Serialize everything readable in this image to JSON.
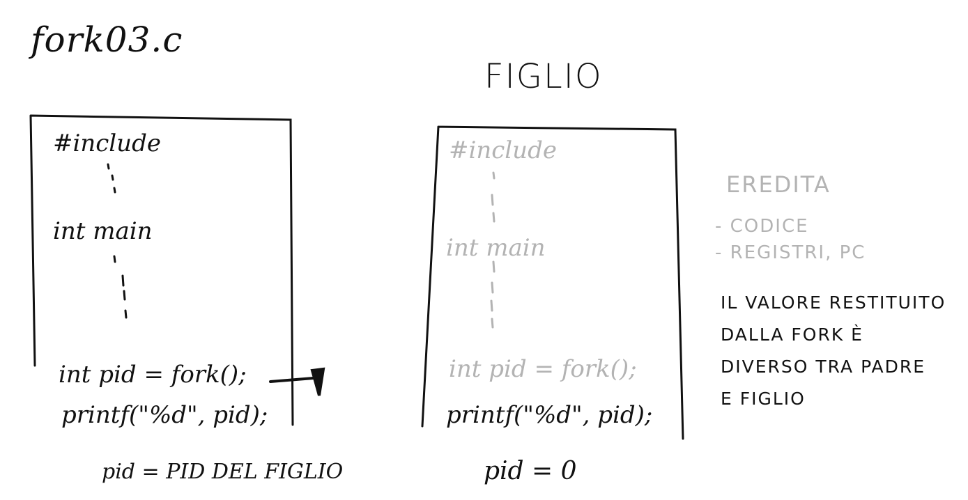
{
  "left_panel": {
    "title": "fork03.c",
    "include": "#include",
    "main": "int main",
    "fork_line": "int pid = fork();",
    "printf_line": "printf(\"%d\", pid);",
    "caption": "pid = PID DEL FIGLIO"
  },
  "right_panel": {
    "title": "FIGLIO",
    "include": "#include",
    "main": "int main",
    "fork_line": "int pid = fork();",
    "printf_line": "printf(\"%d\", pid);",
    "caption": "pid = 0"
  },
  "notes": {
    "inherited_heading": "EREDITA",
    "inherited_items": [
      "- CODICE",
      "- REGISTRI, PC"
    ],
    "explanation": [
      "IL VALORE RESTITUITO",
      "DALLA FORK È",
      "DIVERSO TRA PADRE",
      "E FIGLIO"
    ]
  },
  "colors": {
    "ink": "#111111",
    "faded_ink": "#b3b3b3",
    "background": "#ffffff"
  }
}
